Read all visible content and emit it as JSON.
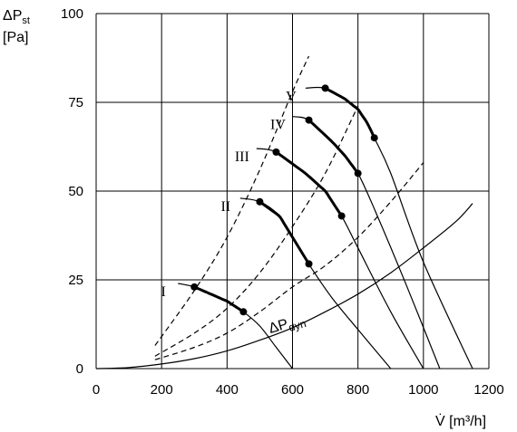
{
  "chart_data": {
    "type": "line",
    "ylabel": {
      "symbol": "ΔP",
      "sub": "st",
      "unit": "[Pa]"
    },
    "xlabel": "V̇ [m³/h]",
    "xlim": [
      0,
      1200
    ],
    "ylim": [
      0,
      100
    ],
    "x_ticks": [
      0,
      200,
      400,
      600,
      800,
      1000,
      1200
    ],
    "y_ticks": [
      0,
      25,
      50,
      75,
      100
    ],
    "grid": true,
    "fan_curves": [
      {
        "name": "I",
        "points": [
          [
            250,
            24
          ],
          [
            300,
            23
          ],
          [
            350,
            21
          ],
          [
            400,
            19
          ],
          [
            450,
            16
          ],
          [
            500,
            12
          ],
          [
            550,
            6
          ],
          [
            600,
            0
          ]
        ],
        "op_range": [
          300,
          450
        ]
      },
      {
        "name": "II",
        "points": [
          [
            440,
            48
          ],
          [
            500,
            47
          ],
          [
            560,
            43
          ],
          [
            600,
            37
          ],
          [
            660,
            28
          ],
          [
            720,
            20
          ],
          [
            800,
            11
          ],
          [
            900,
            0
          ]
        ],
        "op_range": [
          500,
          650
        ]
      },
      {
        "name": "III",
        "points": [
          [
            490,
            62
          ],
          [
            550,
            61
          ],
          [
            640,
            55
          ],
          [
            700,
            50
          ],
          [
            750,
            43
          ],
          [
            800,
            34
          ],
          [
            900,
            16
          ],
          [
            1000,
            0
          ]
        ],
        "op_range": [
          550,
          750
        ]
      },
      {
        "name": "IV",
        "points": [
          [
            600,
            71
          ],
          [
            650,
            70
          ],
          [
            720,
            64
          ],
          [
            760,
            60
          ],
          [
            800,
            55
          ],
          [
            850,
            45
          ],
          [
            950,
            23
          ],
          [
            1050,
            0
          ]
        ],
        "op_range": [
          650,
          800
        ]
      },
      {
        "name": "V",
        "points": [
          [
            640,
            79
          ],
          [
            700,
            79
          ],
          [
            760,
            76
          ],
          [
            800,
            73
          ],
          [
            830,
            69
          ],
          [
            850,
            65
          ],
          [
            900,
            55
          ],
          [
            1000,
            30
          ],
          [
            1150,
            0
          ]
        ],
        "op_range": [
          700,
          850
        ]
      }
    ],
    "system_curves": [
      {
        "points": [
          [
            180,
            6.5
          ],
          [
            300,
            22
          ],
          [
            400,
            37
          ],
          [
            500,
            56
          ],
          [
            600,
            78
          ],
          [
            650,
            88
          ]
        ]
      },
      {
        "points": [
          [
            180,
            3.5
          ],
          [
            300,
            10
          ],
          [
            400,
            17
          ],
          [
            500,
            27
          ],
          [
            600,
            40
          ],
          [
            700,
            55
          ],
          [
            800,
            74
          ]
        ]
      },
      {
        "points": [
          [
            180,
            2.5
          ],
          [
            300,
            6
          ],
          [
            400,
            10
          ],
          [
            500,
            16
          ],
          [
            600,
            23
          ],
          [
            700,
            29
          ],
          [
            800,
            37
          ],
          [
            900,
            47
          ],
          [
            1000,
            58
          ]
        ]
      }
    ],
    "dynamic_pressure": {
      "label": "ΔP",
      "sub": "dyn",
      "points": [
        [
          0,
          0
        ],
        [
          100,
          0.3
        ],
        [
          200,
          1.3
        ],
        [
          300,
          2.8
        ],
        [
          400,
          5
        ],
        [
          500,
          8
        ],
        [
          600,
          11.5
        ],
        [
          700,
          16
        ],
        [
          800,
          21
        ],
        [
          900,
          27
        ],
        [
          1000,
          34
        ],
        [
          1100,
          41.5
        ],
        [
          1150,
          46.5
        ]
      ]
    }
  }
}
